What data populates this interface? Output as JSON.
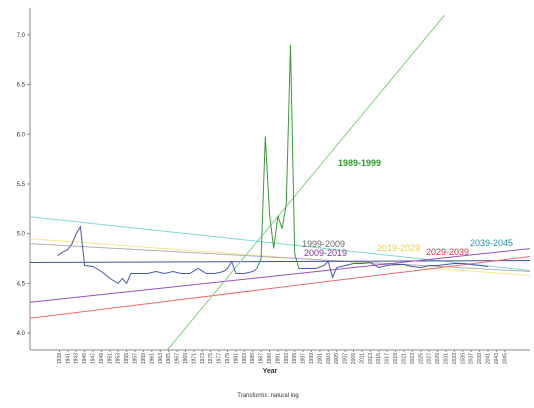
{
  "chart_data": {
    "type": "line",
    "x_label": "Year",
    "footnote": "Transforms: natural log",
    "xlim": [
      1932,
      2051
    ],
    "ylim": [
      3.83,
      7.25
    ],
    "xticks": [
      1939,
      1941,
      1943,
      1945,
      1947,
      1949,
      1951,
      1953,
      1955,
      1957,
      1959,
      1961,
      1963,
      1965,
      1967,
      1969,
      1971,
      1973,
      1975,
      1977,
      1979,
      1981,
      1983,
      1985,
      1987,
      1989,
      1991,
      1993,
      1995,
      1997,
      1999,
      2001,
      2003,
      2005,
      2007,
      2009,
      2011,
      2013,
      2015,
      2017,
      2019,
      2021,
      2023,
      2025,
      2027,
      2029,
      2031,
      2033,
      2035,
      2037,
      2039,
      2041,
      2043,
      2045
    ],
    "yticks": [
      {
        "value": 4,
        "label": "4.0"
      },
      {
        "value": 4.5,
        "label": "4.5"
      },
      {
        "value": 5,
        "label": "5.0"
      },
      {
        "value": 5.5,
        "label": "5.5"
      },
      {
        "value": 6,
        "label": "6.0"
      },
      {
        "value": 6.5,
        "label": "6.5"
      },
      {
        "value": 7,
        "label": "7.0"
      }
    ],
    "series": [
      {
        "color": "#7fd8d0",
        "x": [
          1932,
          2051
        ],
        "values": [
          5.17,
          4.63
        ]
      },
      {
        "color": "#f0e88a",
        "x": [
          1932,
          2051
        ],
        "values": [
          4.95,
          4.58
        ]
      },
      {
        "color": "#b0b0b0",
        "x": [
          1932,
          2051
        ],
        "values": [
          4.9,
          4.62
        ]
      },
      {
        "color": "#4050a0",
        "x": [
          1932,
          2051
        ],
        "values": [
          4.71,
          4.73
        ]
      },
      {
        "color": "#9a50c0",
        "x": [
          1932,
          2051
        ],
        "values": [
          4.31,
          4.85
        ]
      },
      {
        "color": "#f06a6a",
        "x": [
          1932,
          2051
        ],
        "values": [
          4.15,
          4.77
        ]
      },
      {
        "color": "#80d080",
        "x": [
          1964.7,
          2030.7
        ],
        "values": [
          3.83,
          7.2
        ]
      },
      {
        "color": "#4a58b0",
        "x": [
          1938.5,
          1940,
          1941,
          1942,
          1943,
          1944,
          1945,
          1947,
          1949,
          1951,
          1953,
          1954,
          1955,
          1956,
          1958,
          1960,
          1962,
          1964,
          1966,
          1968,
          1970,
          1972,
          1974,
          1976,
          1978,
          1979,
          1980,
          1981,
          1983,
          1985,
          1986
        ],
        "values": [
          4.78,
          4.82,
          4.84,
          4.9,
          5.0,
          5.07,
          4.68,
          4.67,
          4.62,
          4.55,
          4.5,
          4.55,
          4.5,
          4.6,
          4.6,
          4.6,
          4.62,
          4.6,
          4.62,
          4.6,
          4.6,
          4.65,
          4.6,
          4.6,
          4.62,
          4.65,
          4.72,
          4.6,
          4.6,
          4.62,
          4.65
        ]
      },
      {
        "color": "#3a9a3a",
        "x": [
          1986,
          1987,
          1988,
          1989,
          1990,
          1991,
          1992,
          1993,
          1994,
          1995,
          1996
        ],
        "values": [
          4.65,
          4.75,
          5.98,
          5.2,
          4.85,
          5.18,
          5.05,
          5.3,
          6.9,
          4.8,
          4.65
        ]
      },
      {
        "color": "#4a58b0",
        "x": [
          1996,
          1998,
          2000,
          2002,
          2003,
          2004,
          2005,
          2007,
          2009,
          2011,
          2013,
          2015,
          2017,
          2019,
          2021,
          2023,
          2025,
          2027,
          2029,
          2031,
          2033,
          2035,
          2037,
          2039,
          2041
        ],
        "values": [
          4.65,
          4.65,
          4.65,
          4.68,
          4.72,
          4.56,
          4.66,
          4.68,
          4.7,
          4.7,
          4.71,
          4.66,
          4.68,
          4.69,
          4.69,
          4.67,
          4.66,
          4.68,
          4.68,
          4.69,
          4.7,
          4.7,
          4.69,
          4.68,
          4.67
        ]
      }
    ],
    "annotations": [
      {
        "text": "1989-1999",
        "color": "#2e9a2e"
      },
      {
        "text": "1999-2009",
        "color": "#666666"
      },
      {
        "text": "2009-2019",
        "color": "#8030a0"
      },
      {
        "text": "2019-2029",
        "color": "#e8d040"
      },
      {
        "text": "2029-2039",
        "color": "#e03040"
      },
      {
        "text": "2039-2045",
        "color": "#2a90b0"
      }
    ]
  }
}
